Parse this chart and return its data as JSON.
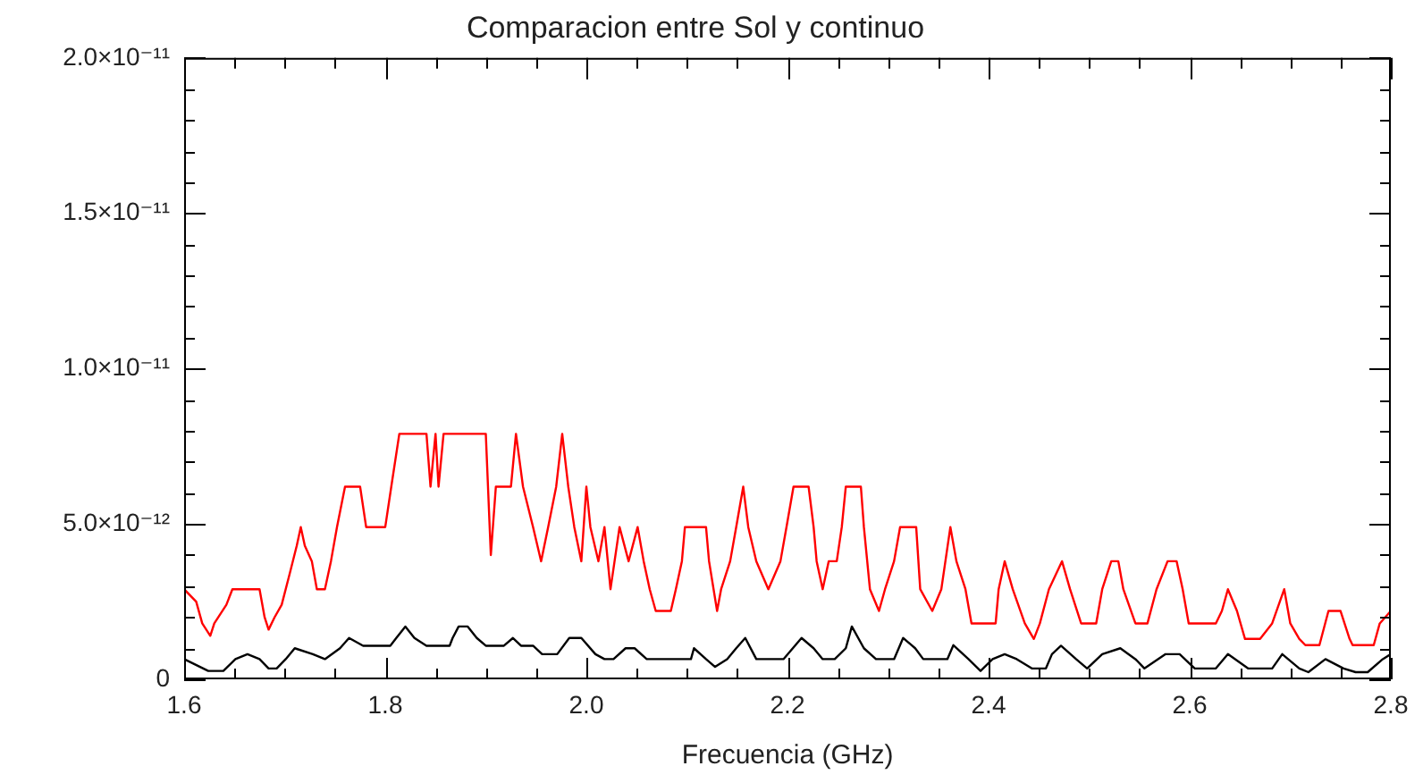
{
  "chart_data": {
    "type": "line",
    "title": "Comparacion entre Sol y continuo",
    "xlabel": "Frecuencia (GHz)",
    "xlim": [
      1.6,
      2.8
    ],
    "xticks": [
      1.6,
      {
        "value": 1.65,
        "label": null
      },
      {
        "value": 1.7,
        "label": null
      },
      {
        "value": 1.75,
        "label": null
      },
      1.8,
      {
        "value": 1.85,
        "label": null
      },
      {
        "value": 1.9,
        "label": null
      },
      {
        "value": 1.95,
        "label": null
      },
      {
        "value": 2.0,
        "label": "2.0"
      },
      {
        "value": 2.05,
        "label": null
      },
      {
        "value": 2.1,
        "label": null
      },
      {
        "value": 2.15,
        "label": null
      },
      2.2,
      {
        "value": 2.25,
        "label": null
      },
      {
        "value": 2.3,
        "label": null
      },
      {
        "value": 2.35,
        "label": null
      },
      2.4,
      {
        "value": 2.45,
        "label": null
      },
      {
        "value": 2.5,
        "label": null
      },
      {
        "value": 2.55,
        "label": null
      },
      2.6,
      {
        "value": 2.65,
        "label": null
      },
      {
        "value": 2.7,
        "label": null
      },
      {
        "value": 2.75,
        "label": null
      },
      2.8
    ],
    "ylim": [
      0,
      2e-11
    ],
    "yticks": [
      0,
      {
        "value": 1e-12,
        "label": null
      },
      {
        "value": 2e-12,
        "label": null
      },
      {
        "value": 3e-12,
        "label": null
      },
      {
        "value": 4e-12,
        "label": null
      },
      {
        "value": 5e-12,
        "label": "5.0×10⁻¹²"
      },
      {
        "value": 6e-12,
        "label": null
      },
      {
        "value": 7e-12,
        "label": null
      },
      {
        "value": 8e-12,
        "label": null
      },
      {
        "value": 9e-12,
        "label": null
      },
      {
        "value": 1e-11,
        "label": "1.0×10⁻¹¹"
      },
      {
        "value": 1.1e-11,
        "label": null
      },
      {
        "value": 1.2e-11,
        "label": null
      },
      {
        "value": 1.3e-11,
        "label": null
      },
      {
        "value": 1.4e-11,
        "label": null
      },
      {
        "value": 1.5e-11,
        "label": "1.5×10⁻¹¹"
      },
      {
        "value": 1.6e-11,
        "label": null
      },
      {
        "value": 1.7e-11,
        "label": null
      },
      {
        "value": 1.8e-11,
        "label": null
      },
      {
        "value": 1.9e-11,
        "label": null
      },
      {
        "value": 2e-11,
        "label": "2.0×10⁻¹¹"
      }
    ],
    "grid": false,
    "legend": false,
    "marker": "none",
    "line_style": "solid",
    "series": [
      {
        "color": "#ff0000",
        "x": [
          1.6,
          1.612,
          1.618,
          1.626,
          1.63,
          1.642,
          1.648,
          1.675,
          1.68,
          1.684,
          1.69,
          1.697,
          1.705,
          1.712,
          1.716,
          1.72,
          1.727,
          1.732,
          1.74,
          1.746,
          1.752,
          1.76,
          1.775,
          1.781,
          1.8,
          1.806,
          1.814,
          1.841,
          1.845,
          1.85,
          1.853,
          1.858,
          1.9,
          1.905,
          1.91,
          1.925,
          1.93,
          1.937,
          1.947,
          1.955,
          1.962,
          1.97,
          1.976,
          1.982,
          1.988,
          1.995,
          2.0,
          2.004,
          2.012,
          2.018,
          2.024,
          2.033,
          2.042,
          2.051,
          2.057,
          2.063,
          2.069,
          2.084,
          2.089,
          2.095,
          2.098,
          2.119,
          2.122,
          2.13,
          2.134,
          2.143,
          2.149,
          2.156,
          2.161,
          2.169,
          2.181,
          2.193,
          2.199,
          2.206,
          2.221,
          2.226,
          2.229,
          2.235,
          2.241,
          2.249,
          2.254,
          2.258,
          2.273,
          2.276,
          2.282,
          2.291,
          2.297,
          2.306,
          2.312,
          2.328,
          2.332,
          2.344,
          2.353,
          2.362,
          2.368,
          2.377,
          2.383,
          2.407,
          2.41,
          2.416,
          2.424,
          2.436,
          2.445,
          2.451,
          2.46,
          2.473,
          2.481,
          2.492,
          2.507,
          2.513,
          2.522,
          2.529,
          2.534,
          2.546,
          2.558,
          2.567,
          2.578,
          2.587,
          2.593,
          2.599,
          2.626,
          2.632,
          2.638,
          2.647,
          2.655,
          2.67,
          2.682,
          2.694,
          2.7,
          2.709,
          2.715,
          2.729,
          2.738,
          2.75,
          2.759,
          2.762,
          2.783,
          2.789,
          2.8
        ],
        "values": [
          2.9e-12,
          2.5e-12,
          1.8e-12,
          1.4e-12,
          1.8e-12,
          2.4e-12,
          2.9e-12,
          2.9e-12,
          2e-12,
          1.6e-12,
          2e-12,
          2.4e-12,
          3.4e-12,
          4.3e-12,
          4.9e-12,
          4.3e-12,
          3.8e-12,
          2.9e-12,
          2.9e-12,
          3.8e-12,
          4.9e-12,
          6.2e-12,
          6.2e-12,
          4.9e-12,
          4.9e-12,
          6.2e-12,
          7.9e-12,
          7.9e-12,
          6.2e-12,
          7.9e-12,
          6.2e-12,
          7.9e-12,
          7.9e-12,
          4e-12,
          6.2e-12,
          6.2e-12,
          7.9e-12,
          6.2e-12,
          4.9e-12,
          3.8e-12,
          4.9e-12,
          6.2e-12,
          7.9e-12,
          6.2e-12,
          4.9e-12,
          3.8e-12,
          6.2e-12,
          4.9e-12,
          3.8e-12,
          4.9e-12,
          2.9e-12,
          4.9e-12,
          3.8e-12,
          4.9e-12,
          3.8e-12,
          2.9e-12,
          2.2e-12,
          2.2e-12,
          2.9e-12,
          3.8e-12,
          4.9e-12,
          4.9e-12,
          3.8e-12,
          2.2e-12,
          2.9e-12,
          3.8e-12,
          4.9e-12,
          6.2e-12,
          4.9e-12,
          3.8e-12,
          2.9e-12,
          3.8e-12,
          4.9e-12,
          6.2e-12,
          6.2e-12,
          4.9e-12,
          3.8e-12,
          2.9e-12,
          3.8e-12,
          3.8e-12,
          4.9e-12,
          6.2e-12,
          6.2e-12,
          4.9e-12,
          2.9e-12,
          2.2e-12,
          2.9e-12,
          3.8e-12,
          4.9e-12,
          4.9e-12,
          2.9e-12,
          2.2e-12,
          2.9e-12,
          4.9e-12,
          3.8e-12,
          2.9e-12,
          1.8e-12,
          1.8e-12,
          2.9e-12,
          3.8e-12,
          2.9e-12,
          1.8e-12,
          1.3e-12,
          1.8e-12,
          2.9e-12,
          3.8e-12,
          2.9e-12,
          1.8e-12,
          1.8e-12,
          2.9e-12,
          3.8e-12,
          3.8e-12,
          2.9e-12,
          1.8e-12,
          1.8e-12,
          2.9e-12,
          3.8e-12,
          3.8e-12,
          2.9e-12,
          1.8e-12,
          1.8e-12,
          2.2e-12,
          2.9e-12,
          2.2e-12,
          1.3e-12,
          1.3e-12,
          1.8e-12,
          2.9e-12,
          1.8e-12,
          1.3e-12,
          1.1e-12,
          1.1e-12,
          2.2e-12,
          2.2e-12,
          1.3e-12,
          1.1e-12,
          1.1e-12,
          1.8e-12,
          2.2e-12
        ]
      },
      {
        "color": "#000000",
        "x": [
          1.6,
          1.624,
          1.639,
          1.651,
          1.663,
          1.675,
          1.684,
          1.692,
          1.701,
          1.71,
          1.728,
          1.74,
          1.755,
          1.764,
          1.778,
          1.805,
          1.811,
          1.82,
          1.829,
          1.841,
          1.864,
          1.867,
          1.873,
          1.882,
          1.891,
          1.9,
          1.918,
          1.927,
          1.935,
          1.947,
          1.956,
          1.971,
          1.983,
          1.995,
          2.009,
          2.018,
          2.027,
          2.039,
          2.048,
          2.06,
          2.104,
          2.107,
          2.119,
          2.128,
          2.14,
          2.149,
          2.158,
          2.169,
          2.196,
          2.214,
          2.226,
          2.235,
          2.247,
          2.258,
          2.264,
          2.276,
          2.288,
          2.306,
          2.315,
          2.327,
          2.335,
          2.359,
          2.365,
          2.38,
          2.392,
          2.404,
          2.416,
          2.428,
          2.443,
          2.457,
          2.463,
          2.472,
          2.487,
          2.498,
          2.513,
          2.531,
          2.546,
          2.555,
          2.576,
          2.59,
          2.605,
          2.626,
          2.638,
          2.658,
          2.682,
          2.692,
          2.709,
          2.718,
          2.735,
          2.753,
          2.765,
          2.777,
          2.792,
          2.8
        ],
        "values": [
          6.5e-13,
          2.7e-13,
          2.7e-13,
          6.5e-13,
          8.1e-13,
          6.5e-13,
          3.5e-13,
          3.5e-13,
          6.5e-13,
          1e-12,
          8.1e-13,
          6.5e-13,
          1e-12,
          1.33e-12,
          1.08e-12,
          1.08e-12,
          1.33e-12,
          1.7e-12,
          1.33e-12,
          1.08e-12,
          1.08e-12,
          1.33e-12,
          1.7e-12,
          1.7e-12,
          1.33e-12,
          1.08e-12,
          1.08e-12,
          1.33e-12,
          1.08e-12,
          1.08e-12,
          8.1e-13,
          8.1e-13,
          1.33e-12,
          1.33e-12,
          8.1e-13,
          6.5e-13,
          6.5e-13,
          1e-12,
          1e-12,
          6.5e-13,
          6.5e-13,
          1e-12,
          6.5e-13,
          4e-13,
          6.5e-13,
          1e-12,
          1.33e-12,
          6.5e-13,
          6.5e-13,
          1.33e-12,
          1e-12,
          6.5e-13,
          6.5e-13,
          1e-12,
          1.7e-12,
          1e-12,
          6.5e-13,
          6.5e-13,
          1.33e-12,
          1e-12,
          6.5e-13,
          6.5e-13,
          1.1e-12,
          6.5e-13,
          2.7e-13,
          6.5e-13,
          8.1e-13,
          6.5e-13,
          3.5e-13,
          3.5e-13,
          8.1e-13,
          1.08e-12,
          6.5e-13,
          3.5e-13,
          8.1e-13,
          1e-12,
          6.5e-13,
          3.5e-13,
          8.1e-13,
          8.1e-13,
          3.5e-13,
          3.5e-13,
          8.1e-13,
          3.5e-13,
          3.5e-13,
          8.1e-13,
          3.5e-13,
          2.3e-13,
          6.5e-13,
          3.5e-13,
          2.3e-13,
          2.3e-13,
          6.5e-13,
          8.1e-13
        ]
      }
    ]
  }
}
